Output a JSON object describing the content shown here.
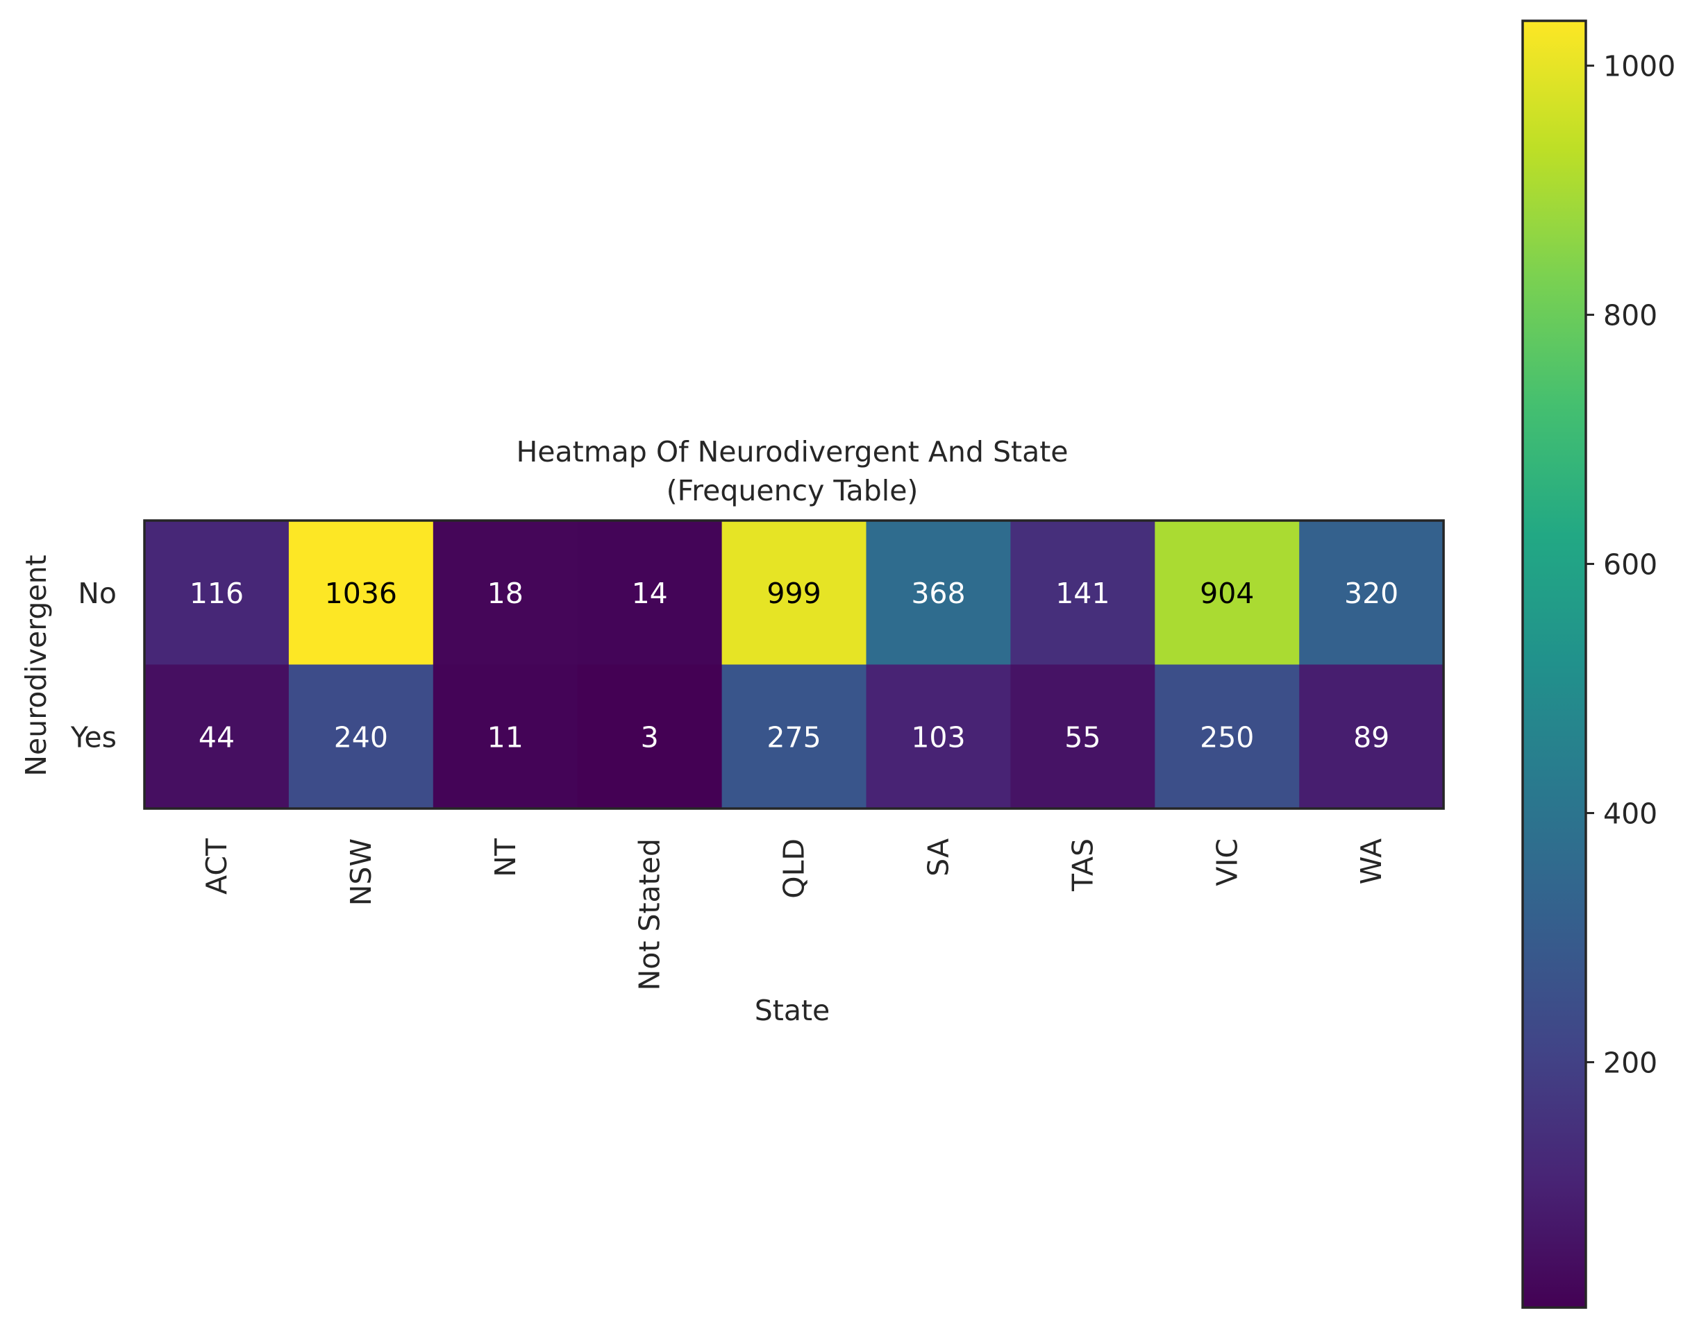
{
  "chart_data": {
    "type": "heatmap",
    "title": "Heatmap Of Neurodivergent And State",
    "subtitle": "(Frequency Table)",
    "xlabel": "State",
    "ylabel": "Neurodivergent",
    "x_categories": [
      "ACT",
      "NSW",
      "NT",
      "Not Stated",
      "QLD",
      "SA",
      "TAS",
      "VIC",
      "WA"
    ],
    "y_categories": [
      "No",
      "Yes"
    ],
    "values": [
      [
        116,
        1036,
        18,
        14,
        999,
        368,
        141,
        904,
        320
      ],
      [
        44,
        240,
        11,
        3,
        275,
        103,
        55,
        250,
        89
      ]
    ],
    "colormap": "viridis",
    "colorbar": {
      "range": [
        3,
        1036
      ],
      "ticks": [
        200,
        400,
        600,
        800,
        1000
      ],
      "tick_labels": [
        "200",
        "400",
        "600",
        "800",
        "1000"
      ]
    },
    "annotations": true,
    "grid": false,
    "colors": {
      "annotation_light": "#ffffff",
      "annotation_dark": "#000000",
      "frame": "#262626"
    }
  }
}
